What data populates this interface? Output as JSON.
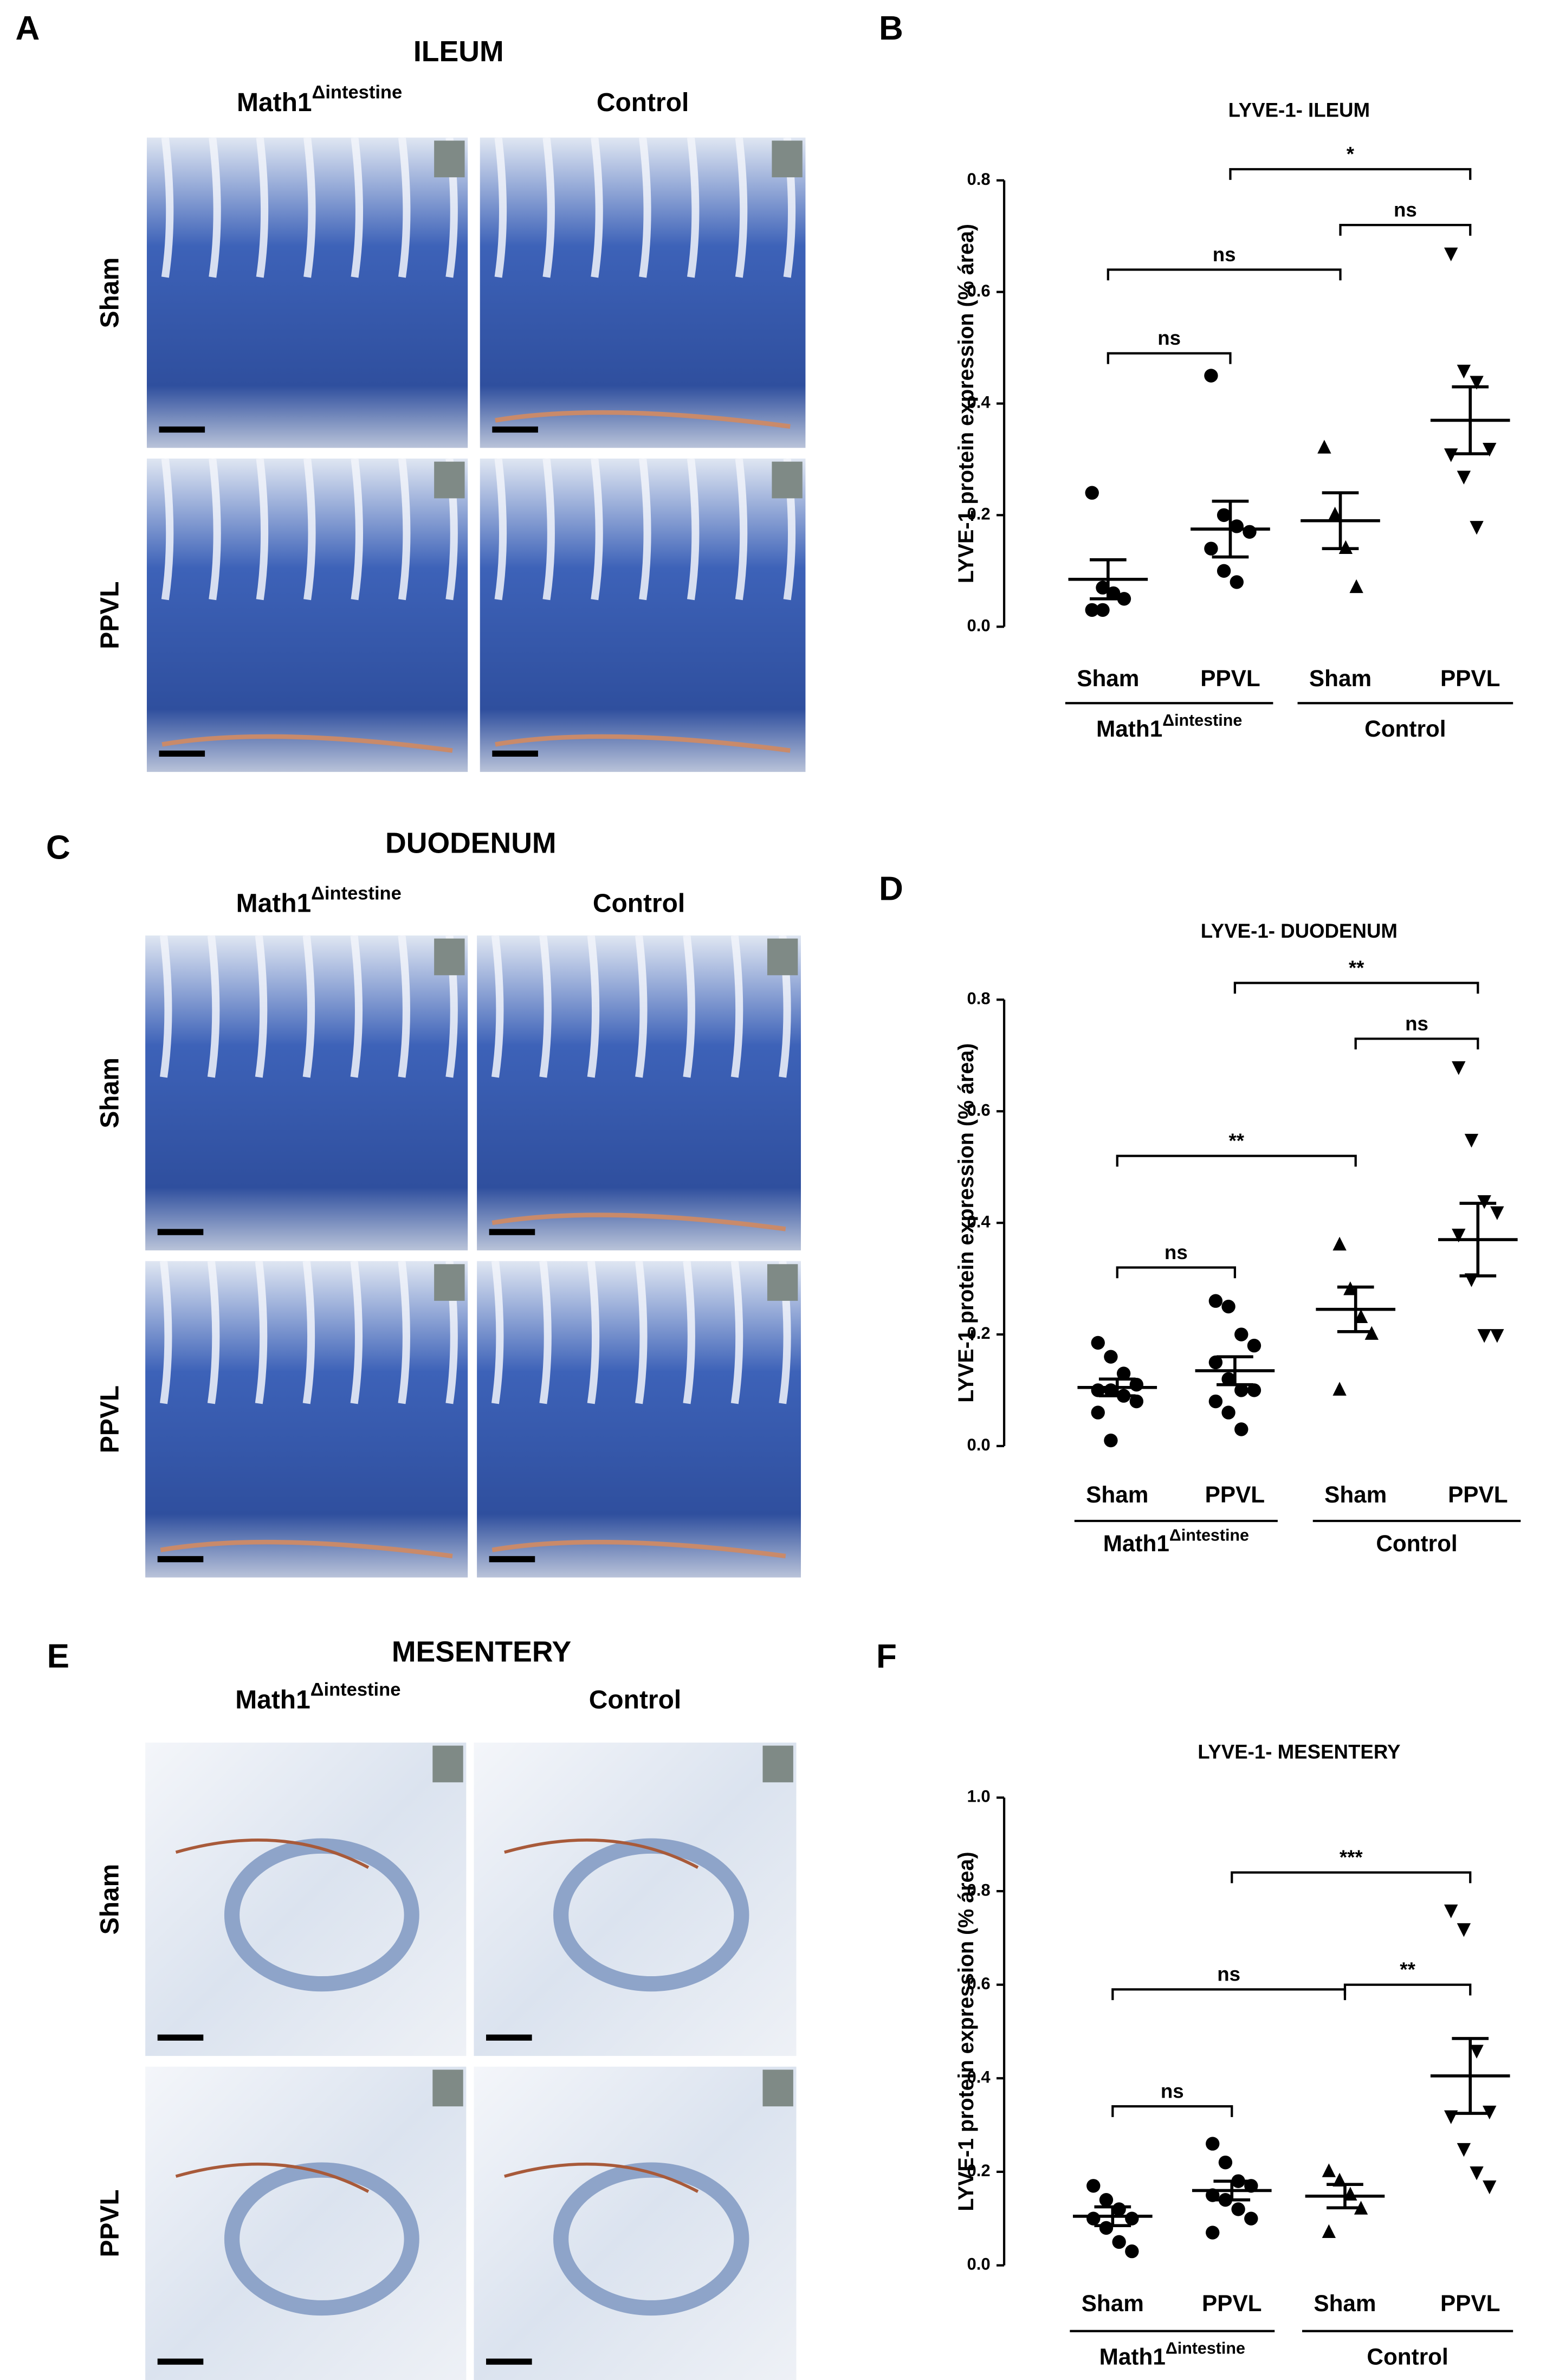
{
  "figure": {
    "panels": [
      {
        "letter": "A",
        "title": "ILEUM",
        "columns": [
          {
            "text": "Math1",
            "superscript": "Δintestine"
          },
          {
            "text": "Control"
          }
        ],
        "rows": [
          "Sham",
          "PPVL"
        ]
      },
      {
        "letter": "C",
        "title": "DUODENUM",
        "columns": [
          {
            "text": "Math1",
            "superscript": "Δintestine"
          },
          {
            "text": "Control"
          }
        ],
        "rows": [
          "Sham",
          "PPVL"
        ]
      },
      {
        "letter": "E",
        "title": "MESENTERY",
        "columns": [
          {
            "text": "Math1",
            "superscript": "Δintestine"
          },
          {
            "text": "Control"
          }
        ],
        "rows": [
          "Sham",
          "PPVL"
        ]
      }
    ]
  },
  "chart_data": [
    {
      "type": "scatter",
      "panel": "B",
      "title": "LYVE-1- ILEUM",
      "ylabel": "LYVE-1 protein expression (% área)",
      "categories": [
        "Sham",
        "PPVL",
        "Sham",
        "PPVL"
      ],
      "groups": [
        {
          "text": "Math1",
          "superscript": "Δintestine"
        },
        {
          "text": "Control"
        }
      ],
      "markers": [
        "circle",
        "circle",
        "triangle",
        "triangle-down"
      ],
      "points": [
        [
          0.24,
          0.07,
          0.06,
          0.05,
          0.03,
          0.03
        ],
        [
          0.45,
          0.2,
          0.18,
          0.17,
          0.14,
          0.1,
          0.08
        ],
        [
          0.32,
          0.2,
          0.14,
          0.07
        ],
        [
          0.67,
          0.46,
          0.44,
          0.32,
          0.31,
          0.27,
          0.18
        ]
      ],
      "mean": [
        0.085,
        0.175,
        0.19,
        0.37
      ],
      "sem": [
        0.035,
        0.05,
        0.05,
        0.06
      ],
      "brackets": [
        {
          "from": 0,
          "to": 1,
          "y": 0.49,
          "label": "ns"
        },
        {
          "from": 0,
          "to": 2,
          "y": 0.64,
          "label": "ns"
        },
        {
          "from": 2,
          "to": 3,
          "y": 0.72,
          "label": "ns"
        },
        {
          "from": 1,
          "to": 3,
          "y": 0.82,
          "label": "*"
        }
      ],
      "ylim": [
        0,
        0.8
      ],
      "yticks": [
        {
          "value": 0,
          "label": "0.0"
        },
        0.2,
        0.4,
        0.6,
        0.8
      ]
    },
    {
      "type": "scatter",
      "panel": "D",
      "title": "LYVE-1- DUODENUM",
      "ylabel": "LYVE-1 protein expression (% área)",
      "categories": [
        "Sham",
        "PPVL",
        "Sham",
        "PPVL"
      ],
      "groups": [
        {
          "text": "Math1",
          "superscript": "Δintestine"
        },
        {
          "text": "Control"
        }
      ],
      "markers": [
        "circle",
        "circle",
        "triangle",
        "triangle-down"
      ],
      "points": [
        [
          0.185,
          0.16,
          0.13,
          0.11,
          0.1,
          0.1,
          0.09,
          0.08,
          0.06,
          0.01
        ],
        [
          0.26,
          0.25,
          0.2,
          0.18,
          0.15,
          0.12,
          0.1,
          0.1,
          0.08,
          0.06,
          0.03
        ],
        [
          0.36,
          0.28,
          0.23,
          0.2,
          0.1
        ],
        [
          0.68,
          0.55,
          0.44,
          0.42,
          0.38,
          0.3,
          0.2,
          0.2
        ]
      ],
      "mean": [
        0.105,
        0.135,
        0.245,
        0.37
      ],
      "sem": [
        0.015,
        0.025,
        0.04,
        0.065
      ],
      "brackets": [
        {
          "from": 0,
          "to": 1,
          "y": 0.32,
          "label": "ns"
        },
        {
          "from": 0,
          "to": 2,
          "y": 0.52,
          "label": "**"
        },
        {
          "from": 2,
          "to": 3,
          "y": 0.73,
          "label": "ns"
        },
        {
          "from": 1,
          "to": 3,
          "y": 0.83,
          "label": "**"
        }
      ],
      "ylim": [
        0,
        0.8
      ],
      "yticks": [
        {
          "value": 0,
          "label": "0.0"
        },
        0.2,
        0.4,
        0.6,
        0.8
      ]
    },
    {
      "type": "scatter",
      "panel": "F",
      "title": "LYVE-1- MESENTERY",
      "ylabel": "LYVE-1 protein expression (% área)",
      "categories": [
        "Sham",
        "PPVL",
        "Sham",
        "PPVL"
      ],
      "groups": [
        {
          "text": "Math1",
          "superscript": "Δintestine"
        },
        {
          "text": "Control"
        }
      ],
      "markers": [
        "circle",
        "circle",
        "triangle",
        "triangle-down"
      ],
      "points": [
        [
          0.17,
          0.14,
          0.12,
          0.1,
          0.1,
          0.08,
          0.05,
          0.03
        ],
        [
          0.26,
          0.22,
          0.18,
          0.17,
          0.15,
          0.14,
          0.12,
          0.1,
          0.07
        ],
        [
          0.2,
          0.18,
          0.15,
          0.12,
          0.07
        ],
        [
          0.76,
          0.72,
          0.46,
          0.33,
          0.32,
          0.25,
          0.2,
          0.17
        ]
      ],
      "mean": [
        0.105,
        0.16,
        0.148,
        0.405
      ],
      "sem": [
        0.02,
        0.02,
        0.025,
        0.08
      ],
      "brackets": [
        {
          "from": 0,
          "to": 1,
          "y": 0.34,
          "label": "ns"
        },
        {
          "from": 0,
          "to": 2,
          "y": 0.59,
          "label": "ns"
        },
        {
          "from": 2,
          "to": 3,
          "y": 0.6,
          "label": "**"
        },
        {
          "from": 1,
          "to": 3,
          "y": 0.84,
          "label": "***"
        }
      ],
      "ylim": [
        0,
        1
      ],
      "yticks": [
        {
          "value": 0,
          "label": "0.0"
        },
        0.2,
        0.4,
        0.6,
        0.8,
        {
          "value": 1,
          "label": "1.0"
        }
      ]
    }
  ]
}
